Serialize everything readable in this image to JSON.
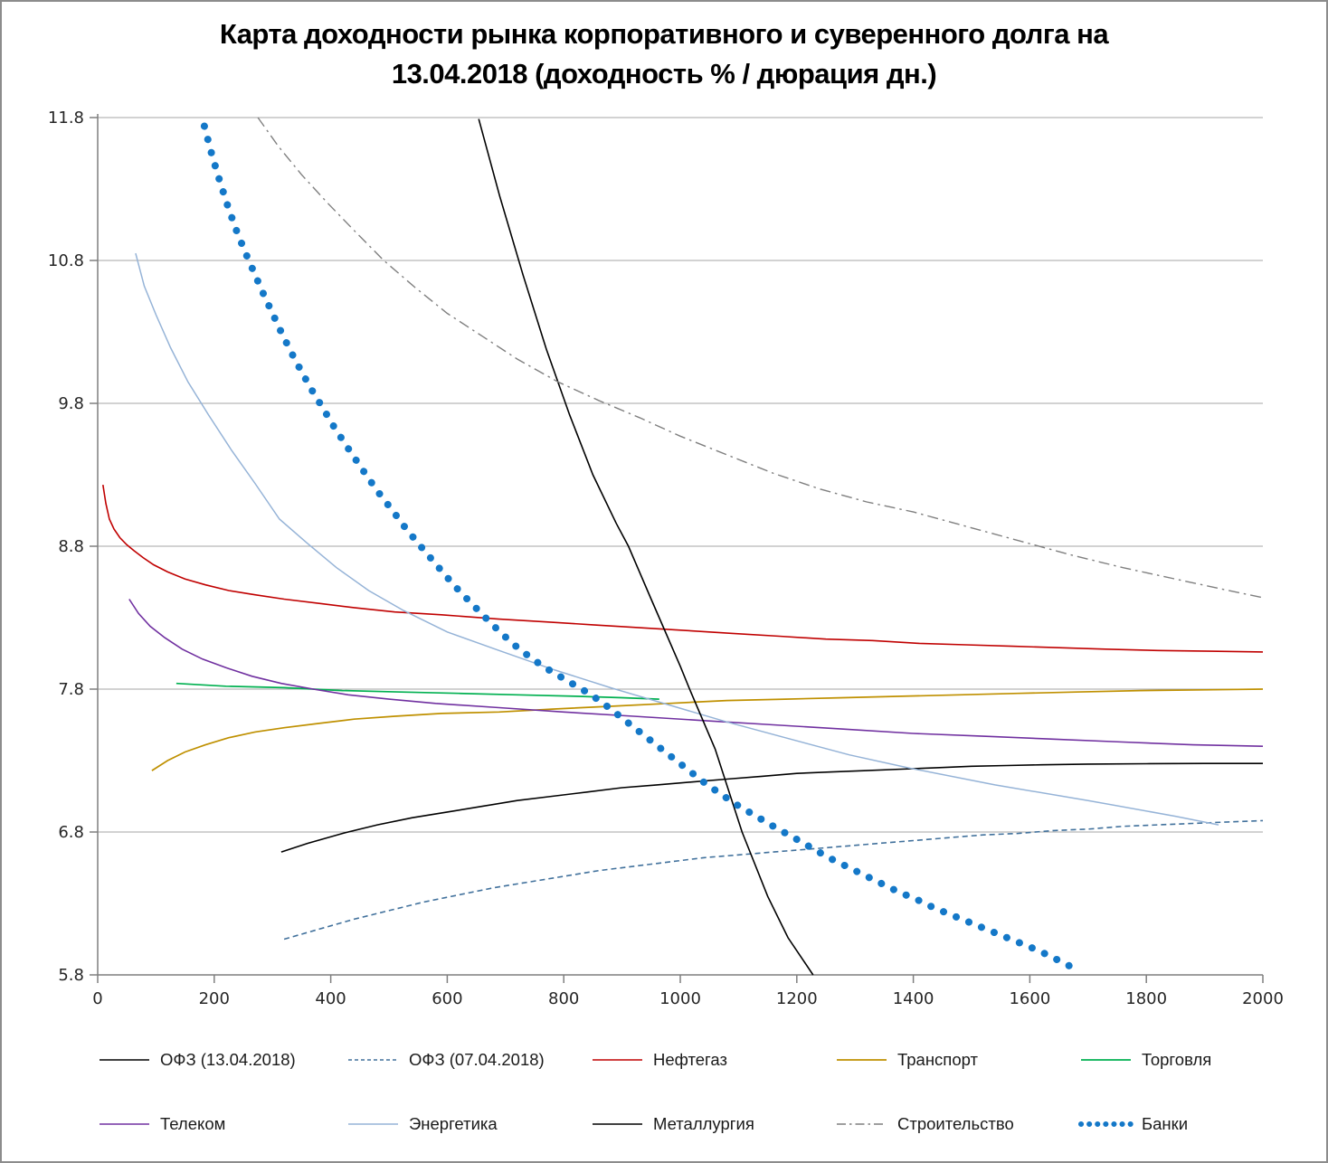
{
  "chart_data": {
    "type": "line",
    "title_line1": "Карта доходности рынка корпоративного и суверенного долга на",
    "title_line2": "13.04.2018 (доходность % / дюрация дн.)",
    "xlabel": "дюрация дн.",
    "ylabel": "доходность %",
    "xlim": [
      0,
      2000
    ],
    "ylim": [
      5.8,
      11.8
    ],
    "x_ticks": [
      0,
      200,
      400,
      600,
      800,
      1000,
      1200,
      1400,
      1600,
      1800,
      2000
    ],
    "y_ticks": [
      5.8,
      6.8,
      7.8,
      8.8,
      9.8,
      10.8,
      11.8
    ],
    "grid": "horizontal",
    "grid_color": "#a6a6a6",
    "axis_color": "#7f7f7f",
    "legend_position": "bottom",
    "series": [
      {
        "name": "ОФЗ (13.04.2018)",
        "color": "#000000",
        "style": "solid",
        "width": 1.6,
        "points": [
          [
            315,
            6.66
          ],
          [
            360,
            6.72
          ],
          [
            420,
            6.79
          ],
          [
            480,
            6.85
          ],
          [
            540,
            6.9
          ],
          [
            600,
            6.94
          ],
          [
            660,
            6.98
          ],
          [
            720,
            7.02
          ],
          [
            780,
            7.05
          ],
          [
            840,
            7.08
          ],
          [
            900,
            7.11
          ],
          [
            960,
            7.13
          ],
          [
            1020,
            7.15
          ],
          [
            1080,
            7.17
          ],
          [
            1140,
            7.19
          ],
          [
            1200,
            7.21
          ],
          [
            1260,
            7.22
          ],
          [
            1320,
            7.23
          ],
          [
            1380,
            7.24
          ],
          [
            1440,
            7.25
          ],
          [
            1500,
            7.26
          ],
          [
            1560,
            7.265
          ],
          [
            1620,
            7.27
          ],
          [
            1700,
            7.275
          ],
          [
            1800,
            7.278
          ],
          [
            1900,
            7.28
          ],
          [
            2000,
            7.28
          ]
        ]
      },
      {
        "name": "ОФЗ (07.04.2018)",
        "color": "#41719c",
        "style": "dashed",
        "width": 1.6,
        "points": [
          [
            320,
            6.05
          ],
          [
            380,
            6.12
          ],
          [
            440,
            6.19
          ],
          [
            500,
            6.25
          ],
          [
            560,
            6.31
          ],
          [
            620,
            6.36
          ],
          [
            680,
            6.41
          ],
          [
            740,
            6.45
          ],
          [
            800,
            6.49
          ],
          [
            860,
            6.53
          ],
          [
            920,
            6.56
          ],
          [
            980,
            6.59
          ],
          [
            1040,
            6.62
          ],
          [
            1100,
            6.64
          ],
          [
            1160,
            6.66
          ],
          [
            1220,
            6.68
          ],
          [
            1280,
            6.7
          ],
          [
            1340,
            6.72
          ],
          [
            1400,
            6.74
          ],
          [
            1460,
            6.76
          ],
          [
            1520,
            6.78
          ],
          [
            1580,
            6.79
          ],
          [
            1640,
            6.81
          ],
          [
            1700,
            6.82
          ],
          [
            1760,
            6.84
          ],
          [
            1820,
            6.85
          ],
          [
            1880,
            6.86
          ],
          [
            1940,
            6.87
          ],
          [
            2000,
            6.88
          ]
        ]
      },
      {
        "name": "Нефтегаз",
        "color": "#c00000",
        "style": "solid",
        "width": 1.6,
        "points": [
          [
            9,
            9.23
          ],
          [
            14,
            9.1
          ],
          [
            20,
            8.99
          ],
          [
            28,
            8.92
          ],
          [
            38,
            8.86
          ],
          [
            50,
            8.81
          ],
          [
            62,
            8.77
          ],
          [
            78,
            8.72
          ],
          [
            96,
            8.67
          ],
          [
            120,
            8.62
          ],
          [
            150,
            8.57
          ],
          [
            185,
            8.53
          ],
          [
            225,
            8.49
          ],
          [
            270,
            8.46
          ],
          [
            320,
            8.43
          ],
          [
            380,
            8.4
          ],
          [
            440,
            8.37
          ],
          [
            510,
            8.34
          ],
          [
            590,
            8.32
          ],
          [
            689,
            8.29
          ],
          [
            770,
            8.27
          ],
          [
            850,
            8.25
          ],
          [
            930,
            8.23
          ],
          [
            1010,
            8.21
          ],
          [
            1090,
            8.19
          ],
          [
            1170,
            8.17
          ],
          [
            1250,
            8.15
          ],
          [
            1330,
            8.14
          ],
          [
            1410,
            8.12
          ],
          [
            1490,
            8.11
          ],
          [
            1570,
            8.1
          ],
          [
            1650,
            8.09
          ],
          [
            1730,
            8.08
          ],
          [
            1820,
            8.07
          ],
          [
            1910,
            8.065
          ],
          [
            2000,
            8.06
          ]
        ]
      },
      {
        "name": "Транспорт",
        "color": "#bf9000",
        "style": "solid",
        "width": 1.7,
        "points": [
          [
            93,
            7.23
          ],
          [
            120,
            7.3
          ],
          [
            150,
            7.36
          ],
          [
            185,
            7.41
          ],
          [
            225,
            7.46
          ],
          [
            270,
            7.5
          ],
          [
            320,
            7.53
          ],
          [
            380,
            7.56
          ],
          [
            440,
            7.59
          ],
          [
            510,
            7.61
          ],
          [
            590,
            7.63
          ],
          [
            689,
            7.64
          ],
          [
            780,
            7.66
          ],
          [
            880,
            7.68
          ],
          [
            980,
            7.7
          ],
          [
            1080,
            7.72
          ],
          [
            1180,
            7.73
          ],
          [
            1280,
            7.74
          ],
          [
            1380,
            7.75
          ],
          [
            1480,
            7.76
          ],
          [
            1580,
            7.77
          ],
          [
            1680,
            7.78
          ],
          [
            1790,
            7.79
          ],
          [
            1900,
            7.795
          ],
          [
            2000,
            7.8
          ]
        ]
      },
      {
        "name": "Торговля",
        "color": "#00b050",
        "style": "solid",
        "width": 1.7,
        "points": [
          [
            135,
            7.84
          ],
          [
            220,
            7.82
          ],
          [
            320,
            7.81
          ],
          [
            420,
            7.79
          ],
          [
            520,
            7.78
          ],
          [
            620,
            7.77
          ],
          [
            720,
            7.76
          ],
          [
            820,
            7.75
          ],
          [
            900,
            7.74
          ],
          [
            964,
            7.73
          ]
        ]
      },
      {
        "name": "Телеком",
        "color": "#7030a0",
        "style": "solid",
        "width": 1.6,
        "points": [
          [
            54,
            8.43
          ],
          [
            70,
            8.33
          ],
          [
            90,
            8.24
          ],
          [
            115,
            8.16
          ],
          [
            145,
            8.08
          ],
          [
            180,
            8.01
          ],
          [
            220,
            7.95
          ],
          [
            265,
            7.89
          ],
          [
            315,
            7.84
          ],
          [
            370,
            7.8
          ],
          [
            430,
            7.76
          ],
          [
            500,
            7.73
          ],
          [
            580,
            7.7
          ],
          [
            689,
            7.67
          ],
          [
            800,
            7.64
          ],
          [
            920,
            7.61
          ],
          [
            1040,
            7.58
          ],
          [
            1160,
            7.55
          ],
          [
            1280,
            7.52
          ],
          [
            1400,
            7.49
          ],
          [
            1520,
            7.47
          ],
          [
            1640,
            7.45
          ],
          [
            1760,
            7.43
          ],
          [
            1880,
            7.41
          ],
          [
            2000,
            7.4
          ]
        ]
      },
      {
        "name": "Энергетика",
        "color": "#95b3d7",
        "style": "solid",
        "width": 1.5,
        "points": [
          [
            65,
            10.85
          ],
          [
            80,
            10.62
          ],
          [
            100,
            10.42
          ],
          [
            125,
            10.19
          ],
          [
            155,
            9.95
          ],
          [
            190,
            9.72
          ],
          [
            230,
            9.47
          ],
          [
            270,
            9.24
          ],
          [
            312,
            8.99
          ],
          [
            360,
            8.82
          ],
          [
            410,
            8.65
          ],
          [
            465,
            8.49
          ],
          [
            525,
            8.35
          ],
          [
            600,
            8.2
          ],
          [
            689,
            8.07
          ],
          [
            780,
            7.94
          ],
          [
            880,
            7.81
          ],
          [
            980,
            7.69
          ],
          [
            1080,
            7.57
          ],
          [
            1180,
            7.46
          ],
          [
            1290,
            7.34
          ],
          [
            1390,
            7.25
          ],
          [
            1540,
            7.13
          ],
          [
            1700,
            7.02
          ],
          [
            1850,
            6.91
          ],
          [
            1924,
            6.85
          ]
        ]
      },
      {
        "name": "Металлургия",
        "color": "#000000",
        "style": "solid",
        "width": 1.6,
        "points": [
          [
            654,
            11.79
          ],
          [
            690,
            11.25
          ],
          [
            730,
            10.7
          ],
          [
            770,
            10.18
          ],
          [
            810,
            9.72
          ],
          [
            850,
            9.3
          ],
          [
            890,
            8.96
          ],
          [
            911,
            8.8
          ],
          [
            950,
            8.43
          ],
          [
            1000,
            7.96
          ],
          [
            1016,
            7.8
          ],
          [
            1060,
            7.38
          ],
          [
            1106,
            6.8
          ],
          [
            1150,
            6.35
          ],
          [
            1185,
            6.06
          ],
          [
            1228,
            5.8
          ]
        ]
      },
      {
        "name": "Строительство",
        "color": "#7f7f7f",
        "style": "dashdot",
        "width": 1.4,
        "points": [
          [
            275,
            11.8
          ],
          [
            310,
            11.6
          ],
          [
            350,
            11.4
          ],
          [
            395,
            11.2
          ],
          [
            440,
            11.01
          ],
          [
            491,
            10.8
          ],
          [
            545,
            10.61
          ],
          [
            600,
            10.43
          ],
          [
            660,
            10.27
          ],
          [
            720,
            10.11
          ],
          [
            790,
            9.95
          ],
          [
            860,
            9.82
          ],
          [
            930,
            9.7
          ],
          [
            1000,
            9.57
          ],
          [
            1080,
            9.44
          ],
          [
            1160,
            9.31
          ],
          [
            1240,
            9.2
          ],
          [
            1320,
            9.11
          ],
          [
            1400,
            9.04
          ],
          [
            1490,
            8.94
          ],
          [
            1580,
            8.84
          ],
          [
            1670,
            8.74
          ],
          [
            1760,
            8.65
          ],
          [
            1850,
            8.57
          ],
          [
            1930,
            8.5
          ],
          [
            2000,
            8.44
          ]
        ]
      },
      {
        "name": "Банки",
        "color": "#1478c8",
        "style": "dots",
        "width": 8,
        "points": [
          [
            183,
            11.74
          ],
          [
            196,
            11.54
          ],
          [
            210,
            11.35
          ],
          [
            224,
            11.17
          ],
          [
            239,
            11.0
          ],
          [
            254,
            10.85
          ],
          [
            269,
            10.71
          ],
          [
            284,
            10.57
          ],
          [
            300,
            10.43
          ],
          [
            316,
            10.29
          ],
          [
            333,
            10.15
          ],
          [
            350,
            10.02
          ],
          [
            368,
            9.89
          ],
          [
            386,
            9.77
          ],
          [
            405,
            9.64
          ],
          [
            424,
            9.52
          ],
          [
            444,
            9.4
          ],
          [
            464,
            9.28
          ],
          [
            485,
            9.16
          ],
          [
            506,
            9.05
          ],
          [
            528,
            8.93
          ],
          [
            550,
            8.82
          ],
          [
            573,
            8.71
          ],
          [
            596,
            8.6
          ],
          [
            620,
            8.49
          ],
          [
            644,
            8.39
          ],
          [
            668,
            8.29
          ],
          [
            693,
            8.19
          ],
          [
            718,
            8.1
          ],
          [
            743,
            8.02
          ],
          [
            768,
            7.95
          ],
          [
            793,
            7.89
          ],
          [
            818,
            7.83
          ],
          [
            843,
            7.77
          ],
          [
            868,
            7.7
          ],
          [
            893,
            7.62
          ],
          [
            918,
            7.54
          ],
          [
            943,
            7.46
          ],
          [
            968,
            7.38
          ],
          [
            993,
            7.3
          ],
          [
            1018,
            7.22
          ],
          [
            1043,
            7.14
          ],
          [
            1068,
            7.07
          ],
          [
            1093,
            7.0
          ],
          [
            1118,
            6.94
          ],
          [
            1143,
            6.88
          ],
          [
            1168,
            6.82
          ],
          [
            1195,
            6.76
          ],
          [
            1225,
            6.69
          ],
          [
            1255,
            6.62
          ],
          [
            1285,
            6.56
          ],
          [
            1315,
            6.5
          ],
          [
            1345,
            6.44
          ],
          [
            1375,
            6.38
          ],
          [
            1405,
            6.33
          ],
          [
            1435,
            6.27
          ],
          [
            1465,
            6.22
          ],
          [
            1495,
            6.17
          ],
          [
            1525,
            6.12
          ],
          [
            1555,
            6.07
          ],
          [
            1585,
            6.02
          ],
          [
            1615,
            5.97
          ],
          [
            1645,
            5.91
          ],
          [
            1665,
            5.87
          ],
          [
            1683,
            5.82
          ]
        ]
      }
    ]
  }
}
